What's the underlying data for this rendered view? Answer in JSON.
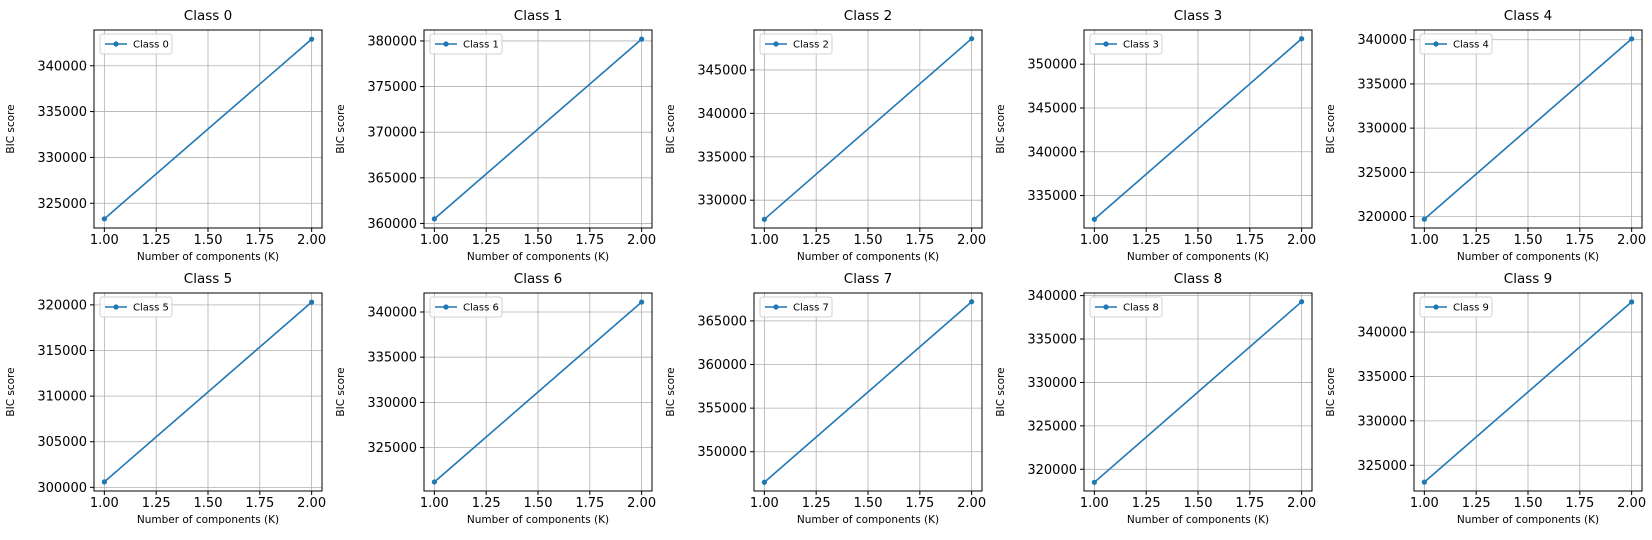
{
  "colors": {
    "line": "#1f77b4",
    "grid": "#b0b0b0",
    "axes": "#000000",
    "background": "#ffffff"
  },
  "chart_data": [
    {
      "type": "line",
      "title": "Class 0",
      "xlabel": "Number of components (K)",
      "ylabel": "BIC score",
      "legend": "top-left",
      "grid": true,
      "x": [
        1.0,
        2.0
      ],
      "series": [
        {
          "name": "Class 0",
          "values": [
            323300,
            342900
          ]
        }
      ],
      "xlim": [
        0.95,
        2.05
      ],
      "ylim": [
        322300,
        343900
      ],
      "xticks": [
        "1.00",
        "1.25",
        "1.50",
        "1.75",
        "2.00"
      ],
      "yticks": [
        325000,
        330000,
        335000,
        340000
      ]
    },
    {
      "type": "line",
      "title": "Class 1",
      "xlabel": "Number of components (K)",
      "ylabel": "BIC score",
      "legend": "top-left",
      "grid": true,
      "x": [
        1.0,
        2.0
      ],
      "series": [
        {
          "name": "Class 1",
          "values": [
            360500,
            380200
          ]
        }
      ],
      "xlim": [
        0.95,
        2.05
      ],
      "ylim": [
        359500,
        381200
      ],
      "xticks": [
        "1.00",
        "1.25",
        "1.50",
        "1.75",
        "2.00"
      ],
      "yticks": [
        360000,
        365000,
        370000,
        375000,
        380000
      ]
    },
    {
      "type": "line",
      "title": "Class 2",
      "xlabel": "Number of components (K)",
      "ylabel": "BIC score",
      "legend": "top-left",
      "grid": true,
      "x": [
        1.0,
        2.0
      ],
      "series": [
        {
          "name": "Class 2",
          "values": [
            327800,
            348600
          ]
        }
      ],
      "xlim": [
        0.95,
        2.05
      ],
      "ylim": [
        326800,
        349600
      ],
      "xticks": [
        "1.00",
        "1.25",
        "1.50",
        "1.75",
        "2.00"
      ],
      "yticks": [
        330000,
        335000,
        340000,
        345000
      ]
    },
    {
      "type": "line",
      "title": "Class 3",
      "xlabel": "Number of components (K)",
      "ylabel": "BIC score",
      "legend": "top-left",
      "grid": true,
      "x": [
        1.0,
        2.0
      ],
      "series": [
        {
          "name": "Class 3",
          "values": [
            332300,
            352900
          ]
        }
      ],
      "xlim": [
        0.95,
        2.05
      ],
      "ylim": [
        331300,
        353900
      ],
      "xticks": [
        "1.00",
        "1.25",
        "1.50",
        "1.75",
        "2.00"
      ],
      "yticks": [
        335000,
        340000,
        345000,
        350000
      ]
    },
    {
      "type": "line",
      "title": "Class 4",
      "xlabel": "Number of components (K)",
      "ylabel": "BIC score",
      "legend": "top-left",
      "grid": true,
      "x": [
        1.0,
        2.0
      ],
      "series": [
        {
          "name": "Class 4",
          "values": [
            319700,
            340100
          ]
        }
      ],
      "xlim": [
        0.95,
        2.05
      ],
      "ylim": [
        318700,
        341100
      ],
      "xticks": [
        "1.00",
        "1.25",
        "1.50",
        "1.75",
        "2.00"
      ],
      "yticks": [
        320000,
        325000,
        330000,
        335000,
        340000
      ]
    },
    {
      "type": "line",
      "title": "Class 5",
      "xlabel": "Number of components (K)",
      "ylabel": "BIC score",
      "legend": "top-left",
      "grid": true,
      "x": [
        1.0,
        2.0
      ],
      "series": [
        {
          "name": "Class 5",
          "values": [
            300600,
            320300
          ]
        }
      ],
      "xlim": [
        0.95,
        2.05
      ],
      "ylim": [
        299600,
        321300
      ],
      "xticks": [
        "1.00",
        "1.25",
        "1.50",
        "1.75",
        "2.00"
      ],
      "yticks": [
        300000,
        305000,
        310000,
        315000,
        320000
      ]
    },
    {
      "type": "line",
      "title": "Class 6",
      "xlabel": "Number of components (K)",
      "ylabel": "BIC score",
      "legend": "top-left",
      "grid": true,
      "x": [
        1.0,
        2.0
      ],
      "series": [
        {
          "name": "Class 6",
          "values": [
            321200,
            341100
          ]
        }
      ],
      "xlim": [
        0.95,
        2.05
      ],
      "ylim": [
        320200,
        342100
      ],
      "xticks": [
        "1.00",
        "1.25",
        "1.50",
        "1.75",
        "2.00"
      ],
      "yticks": [
        325000,
        330000,
        335000,
        340000
      ]
    },
    {
      "type": "line",
      "title": "Class 7",
      "xlabel": "Number of components (K)",
      "ylabel": "BIC score",
      "legend": "top-left",
      "grid": true,
      "x": [
        1.0,
        2.0
      ],
      "series": [
        {
          "name": "Class 7",
          "values": [
            346500,
            367200
          ]
        }
      ],
      "xlim": [
        0.95,
        2.05
      ],
      "ylim": [
        345500,
        368200
      ],
      "xticks": [
        "1.00",
        "1.25",
        "1.50",
        "1.75",
        "2.00"
      ],
      "yticks": [
        350000,
        355000,
        360000,
        365000
      ]
    },
    {
      "type": "line",
      "title": "Class 8",
      "xlabel": "Number of components (K)",
      "ylabel": "BIC score",
      "legend": "top-left",
      "grid": true,
      "x": [
        1.0,
        2.0
      ],
      "series": [
        {
          "name": "Class 8",
          "values": [
            318500,
            339300
          ]
        }
      ],
      "xlim": [
        0.95,
        2.05
      ],
      "ylim": [
        317500,
        340300
      ],
      "xticks": [
        "1.00",
        "1.25",
        "1.50",
        "1.75",
        "2.00"
      ],
      "yticks": [
        320000,
        325000,
        330000,
        335000,
        340000
      ]
    },
    {
      "type": "line",
      "title": "Class 9",
      "xlabel": "Number of components (K)",
      "ylabel": "BIC score",
      "legend": "top-left",
      "grid": true,
      "x": [
        1.0,
        2.0
      ],
      "series": [
        {
          "name": "Class 9",
          "values": [
            323100,
            343400
          ]
        }
      ],
      "xlim": [
        0.95,
        2.05
      ],
      "ylim": [
        322100,
        344400
      ],
      "xticks": [
        "1.00",
        "1.25",
        "1.50",
        "1.75",
        "2.00"
      ],
      "yticks": [
        325000,
        330000,
        335000,
        340000
      ]
    }
  ]
}
